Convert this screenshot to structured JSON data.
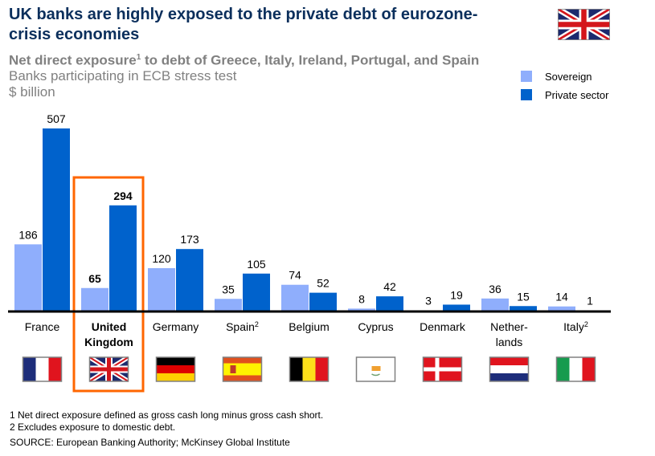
{
  "header": {
    "title": "UK banks are highly exposed to the private debt of eurozone-crisis economies",
    "subtitle_text": "Net direct exposure",
    "subtitle_sup": "1",
    "subtitle_rest": " to debt of Greece, Italy, Ireland, Portugal, and Spain",
    "line2": "Banks participating in ECB stress test",
    "units": "$ billion",
    "flag": "uk-flag"
  },
  "colors": {
    "sovereign": "#8faefc",
    "private": "#0062cc",
    "highlight": "#ff6600",
    "axis": "#000000"
  },
  "chart_data": {
    "type": "bar",
    "title": "UK banks are highly exposed to the private debt of eurozone-crisis economies",
    "xlabel": "",
    "ylabel": "$ billion",
    "ylim": [
      0,
      507
    ],
    "grid": false,
    "legend_position": "top-right",
    "categories": [
      "France",
      "United Kingdom",
      "Germany",
      "Spain",
      "Belgium",
      "Cyprus",
      "Denmark",
      "Netherlands",
      "Italy"
    ],
    "category_labels": [
      {
        "lines": [
          "France"
        ],
        "sup": ""
      },
      {
        "lines": [
          "United",
          "Kingdom"
        ],
        "sup": "",
        "bold": true
      },
      {
        "lines": [
          "Germany"
        ],
        "sup": ""
      },
      {
        "lines": [
          "Spain"
        ],
        "sup": "2"
      },
      {
        "lines": [
          "Belgium"
        ],
        "sup": ""
      },
      {
        "lines": [
          "Cyprus"
        ],
        "sup": ""
      },
      {
        "lines": [
          "Denmark"
        ],
        "sup": ""
      },
      {
        "lines": [
          "Nether-",
          "lands"
        ],
        "sup": ""
      },
      {
        "lines": [
          "Italy"
        ],
        "sup": "2"
      }
    ],
    "flags": [
      "france",
      "uk",
      "germany",
      "spain",
      "belgium",
      "cyprus",
      "denmark",
      "netherlands",
      "italy"
    ],
    "highlighted_category": "United Kingdom",
    "series": [
      {
        "name": "Sovereign",
        "values": [
          186,
          65,
          120,
          35,
          74,
          8,
          3,
          36,
          14
        ]
      },
      {
        "name": "Private sector",
        "values": [
          507,
          294,
          173,
          105,
          52,
          42,
          19,
          15,
          1
        ]
      }
    ]
  },
  "legend": [
    {
      "label": "Sovereign"
    },
    {
      "label": "Private sector"
    }
  ],
  "footnotes": [
    "1 Net direct exposure defined as gross cash long minus gross cash short.",
    "2 Excludes exposure to domestic debt.",
    "SOURCE: European Banking Authority; McKinsey Global Institute"
  ]
}
